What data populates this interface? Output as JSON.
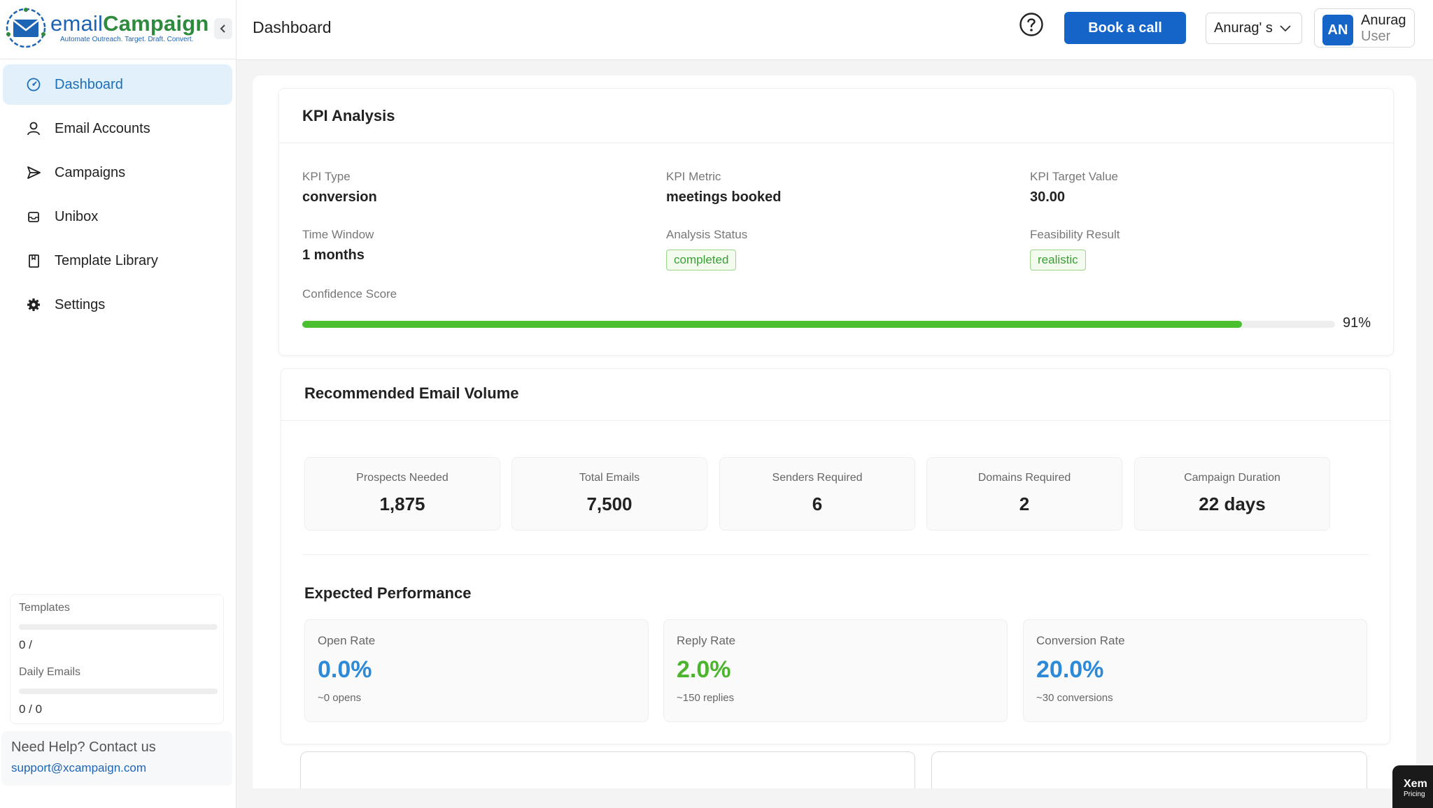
{
  "brand": {
    "name_prefix": "email",
    "name_suffix": "Campaign",
    "tagline": "Automate Outreach. Target. Draft. Convert.",
    "primary_color": "#1565c8",
    "accent_green": "#2e8b3e"
  },
  "sidebar": {
    "items": [
      {
        "label": "Dashboard",
        "icon": "dashboard-icon",
        "active": true
      },
      {
        "label": "Email Accounts",
        "icon": "user-icon",
        "active": false
      },
      {
        "label": "Campaigns",
        "icon": "send-icon",
        "active": false
      },
      {
        "label": "Unibox",
        "icon": "inbox-icon",
        "active": false
      },
      {
        "label": "Template Library",
        "icon": "book-icon",
        "active": false
      },
      {
        "label": "Settings",
        "icon": "gear-icon",
        "active": false
      }
    ],
    "usage": {
      "templates_label": "Templates",
      "templates_value": "0 /",
      "daily_label": "Daily Emails",
      "daily_value": "0 / 0"
    },
    "help": {
      "title": "Need Help? Contact us",
      "email": "support@xcampaign.com"
    }
  },
  "header": {
    "title": "Dashboard",
    "book_call": "Book a call",
    "workspace": "Anurag' s",
    "user_initials": "AN",
    "user_name": "Anurag",
    "user_role": "User"
  },
  "kpi": {
    "title": "KPI Analysis",
    "type_label": "KPI Type",
    "type_value": "conversion",
    "metric_label": "KPI Metric",
    "metric_value": "meetings booked",
    "target_label": "KPI Target Value",
    "target_value": "30.00",
    "window_label": "Time Window",
    "window_value": "1 months",
    "status_label": "Analysis Status",
    "status_value": "completed",
    "feasibility_label": "Feasibility Result",
    "feasibility_value": "realistic",
    "confidence_label": "Confidence Score",
    "confidence_value": 0.91,
    "confidence_text": "91%"
  },
  "volume": {
    "title": "Recommended Email Volume",
    "stats": [
      {
        "label": "Prospects Needed",
        "value": "1,875"
      },
      {
        "label": "Total Emails",
        "value": "7,500"
      },
      {
        "label": "Senders Required",
        "value": "6"
      },
      {
        "label": "Domains Required",
        "value": "2"
      },
      {
        "label": "Campaign Duration",
        "value": "22 days"
      }
    ]
  },
  "performance": {
    "title": "Expected Performance",
    "items": [
      {
        "label": "Open Rate",
        "value": "0.0%",
        "sub": "~0 opens",
        "color": "#2d8ad8"
      },
      {
        "label": "Reply Rate",
        "value": "2.0%",
        "sub": "~150 replies",
        "color": "#4bb52e"
      },
      {
        "label": "Conversion Rate",
        "value": "20.0%",
        "sub": "~30 conversions",
        "color": "#2d8ad8"
      }
    ]
  },
  "widget": {
    "title": "Xem",
    "sub": "Pricing"
  }
}
